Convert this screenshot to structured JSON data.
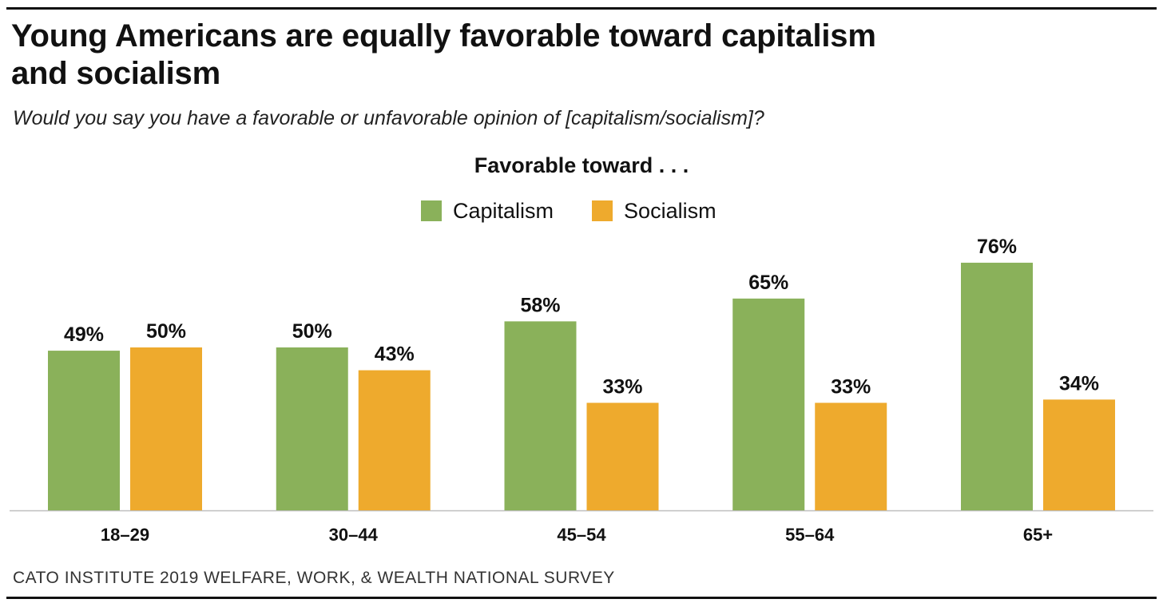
{
  "header": {
    "title": "Young Americans are equally favorable toward capitalism and socialism",
    "subtitle": "Would you say you have a favorable or unfavorable opinion of [capitalism/socialism]?"
  },
  "legend": {
    "title": "Favorable toward . . .",
    "items": [
      {
        "label": "Capitalism",
        "color": "#8ab15a"
      },
      {
        "label": "Socialism",
        "color": "#eeaa2d"
      }
    ]
  },
  "chart_data": {
    "type": "bar",
    "categories": [
      "18–29",
      "30–44",
      "45–54",
      "55–64",
      "65+"
    ],
    "series": [
      {
        "name": "Capitalism",
        "values": [
          49,
          50,
          58,
          65,
          76
        ],
        "labels": [
          "49%",
          "50%",
          "58%",
          "65%",
          "76%"
        ],
        "color": "#8ab15a"
      },
      {
        "name": "Socialism",
        "values": [
          50,
          43,
          33,
          33,
          34
        ],
        "labels": [
          "50%",
          "43%",
          "33%",
          "33%",
          "34%"
        ],
        "color": "#eeaa2d"
      }
    ],
    "ylim": [
      0,
      100
    ],
    "grid": false,
    "legend_position": "top-center"
  },
  "footer": {
    "source": "CATO INSTITUTE 2019 WELFARE, WORK, & WEALTH NATIONAL SURVEY"
  }
}
